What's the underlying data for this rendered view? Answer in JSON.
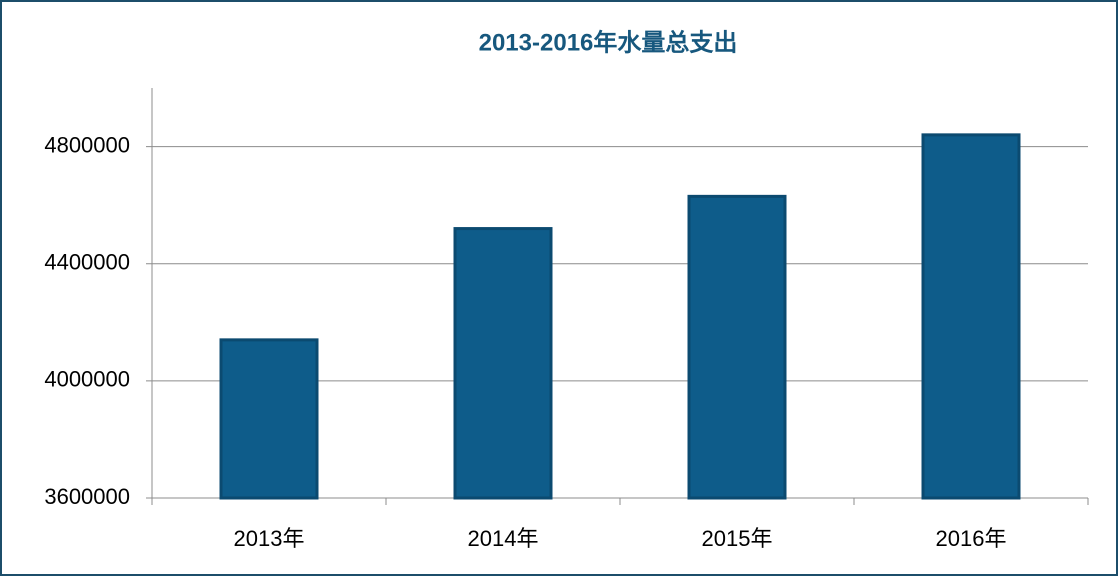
{
  "chart_data": {
    "type": "bar",
    "title": "2013-2016年水量总支出",
    "categories": [
      "2013年",
      "2014年",
      "2015年",
      "2016年"
    ],
    "values": [
      4140000,
      4520000,
      4630000,
      4840000
    ],
    "color": "#0e5c8a",
    "ylim": [
      3600000,
      5000000
    ],
    "yticks": [
      3600000,
      4000000,
      4400000,
      4800000
    ],
    "grid": true
  }
}
